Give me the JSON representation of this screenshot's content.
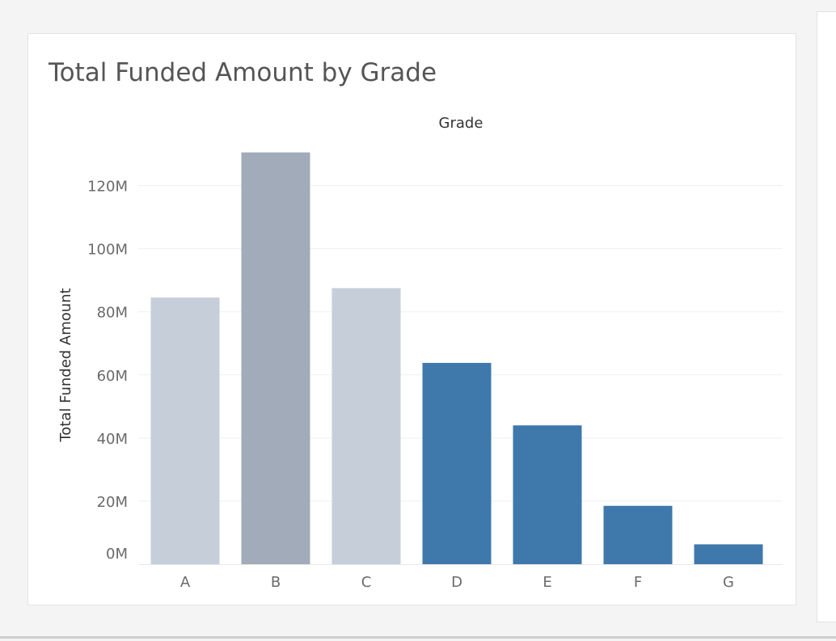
{
  "chart_data": {
    "type": "bar",
    "title": "Total Funded Amount by Grade",
    "header": "Grade",
    "xlabel": "",
    "ylabel": "Total Funded Amount",
    "categories": [
      "A",
      "B",
      "C",
      "D",
      "E",
      "F",
      "G"
    ],
    "values": [
      84500000,
      130500000,
      87500000,
      63800000,
      44000000,
      18500000,
      6300000
    ],
    "bar_colors": [
      "#c5ced9",
      "#a1abb9",
      "#c5ced9",
      "#3f79ab",
      "#3f79ab",
      "#3f79ab",
      "#3f79ab"
    ],
    "ylim": [
      0,
      135000000
    ],
    "yticks": [
      0,
      20000000,
      40000000,
      60000000,
      80000000,
      100000000,
      120000000
    ],
    "ytick_labels": [
      "0M",
      "20M",
      "40M",
      "60M",
      "80M",
      "100M",
      "120M"
    ],
    "grid": true,
    "legend": "none"
  }
}
